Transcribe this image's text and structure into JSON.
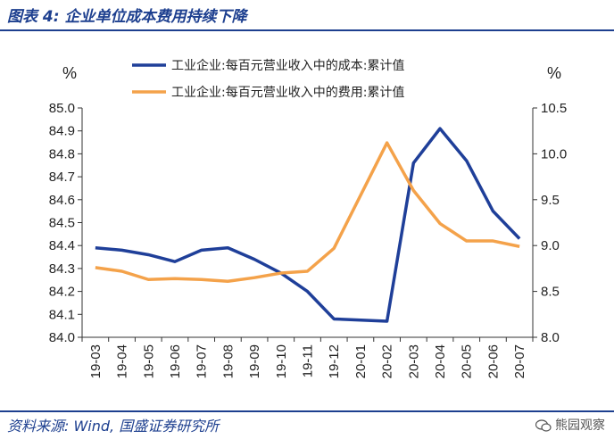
{
  "figure": {
    "title": "图表 4:  企业单位成本费用持续下降",
    "source": "资料来源:  Wind,  国盛证券研究所",
    "watermark": "熊园观察"
  },
  "chart_data": {
    "type": "line",
    "categories": [
      "19-03",
      "19-04",
      "19-05",
      "19-06",
      "19-07",
      "19-08",
      "19-09",
      "19-10",
      "19-11",
      "19-12",
      "20-01",
      "20-02",
      "20-03",
      "20-04",
      "20-05",
      "20-06",
      "20-07"
    ],
    "left_axis": {
      "unit": "%",
      "ylim": [
        84.0,
        85.0
      ],
      "ticks": [
        "84.0",
        "84.1",
        "84.2",
        "84.3",
        "84.4",
        "84.5",
        "84.6",
        "84.7",
        "84.8",
        "84.9",
        "85.0"
      ]
    },
    "right_axis": {
      "unit": "%",
      "ylim": [
        8.0,
        10.5
      ],
      "ticks": [
        "8.0",
        "8.5",
        "9.0",
        "9.5",
        "10.0",
        "10.5"
      ]
    },
    "legend_position": "top",
    "grid": false,
    "series": [
      {
        "name": "工业企业:每百元营业收入中的成本:累计值",
        "axis": "left",
        "color": "#1f3f99",
        "values": [
          84.39,
          84.38,
          84.36,
          84.33,
          84.38,
          84.39,
          84.34,
          84.28,
          84.2,
          84.08,
          null,
          84.07,
          84.76,
          84.91,
          84.77,
          84.55,
          84.43
        ]
      },
      {
        "name": "工业企业:每百元营业收入中的费用:累计值",
        "axis": "right",
        "color": "#f4a24a",
        "values": [
          8.76,
          8.72,
          8.63,
          8.64,
          8.63,
          8.61,
          8.65,
          8.7,
          8.72,
          8.97,
          null,
          10.12,
          9.6,
          9.24,
          9.05,
          9.05,
          8.99
        ]
      }
    ]
  }
}
